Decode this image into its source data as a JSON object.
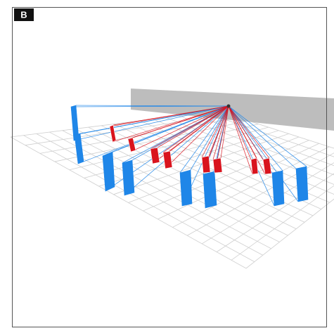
{
  "panel": {
    "label": "B"
  }
}
